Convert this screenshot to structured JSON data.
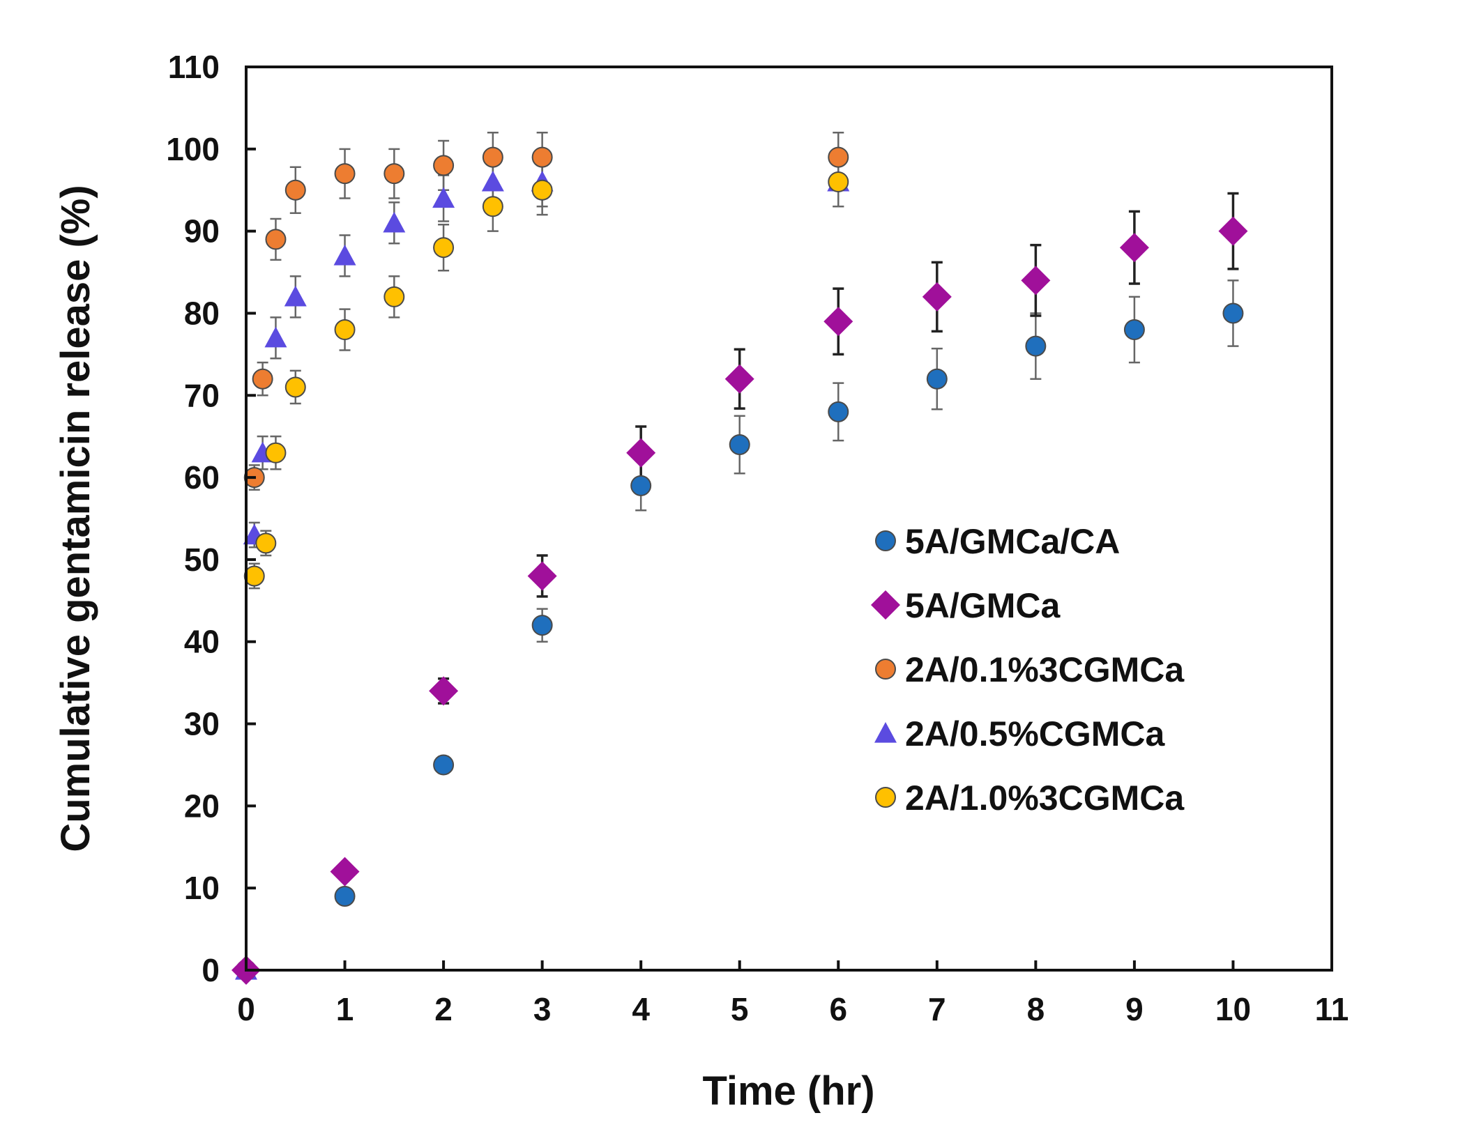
{
  "chart_data": {
    "type": "scatter",
    "title": "",
    "xlabel": "Time (hr)",
    "ylabel": "Cumulative gentamicin release (%)",
    "xlim": [
      0,
      11
    ],
    "ylim": [
      0,
      110
    ],
    "xticks": [
      "0",
      "1",
      "2",
      "3",
      "4",
      "5",
      "6",
      "7",
      "8",
      "9",
      "10",
      "11"
    ],
    "yticks": [
      "0",
      "10",
      "20",
      "30",
      "40",
      "50",
      "60",
      "70",
      "80",
      "90",
      "100",
      "110"
    ],
    "grid": false,
    "legend_position": "center-right",
    "series": [
      {
        "name": "5A/GMCa/CA",
        "marker": "circle",
        "color": "#1f6fbd",
        "x": [
          0,
          1,
          2,
          3,
          4,
          5,
          6,
          7,
          8,
          9,
          10
        ],
        "y": [
          0,
          9,
          25,
          42,
          59,
          64,
          68,
          72,
          76,
          78,
          80
        ],
        "err": [
          0,
          0.5,
          1,
          2,
          3,
          3.5,
          3.5,
          3.7,
          4,
          4,
          4
        ]
      },
      {
        "name": "5A/GMCa",
        "marker": "diamond",
        "color": "#a0109a",
        "x": [
          0,
          1,
          2,
          3,
          4,
          5,
          6,
          7,
          8,
          9,
          10
        ],
        "y": [
          0,
          12,
          34,
          48,
          63,
          72,
          79,
          82,
          84,
          88,
          90
        ],
        "err": [
          0,
          0.5,
          1.5,
          2.5,
          3.2,
          3.6,
          4,
          4.2,
          4.3,
          4.4,
          4.6
        ]
      },
      {
        "name": "2A/0.1%3CGMCa",
        "marker": "circle",
        "color": "#ed7d31",
        "x": [
          0,
          0.083,
          0.167,
          0.3,
          0.5,
          1,
          1.5,
          2,
          2.5,
          3,
          6
        ],
        "y": [
          0,
          60,
          72,
          89,
          95,
          97,
          97,
          98,
          99,
          99,
          99
        ],
        "err": [
          0,
          1.5,
          2,
          2.5,
          2.8,
          3,
          3,
          3,
          3,
          3,
          3
        ]
      },
      {
        "name": "2A/0.5%CGMCa",
        "marker": "triangle",
        "color": "#5b4be0",
        "x": [
          0,
          0.083,
          0.167,
          0.3,
          0.5,
          1,
          1.5,
          2,
          2.5,
          3,
          6
        ],
        "y": [
          0,
          53,
          63,
          77,
          82,
          87,
          91,
          94,
          96,
          96,
          96
        ],
        "err": [
          0,
          1.5,
          2,
          2.5,
          2.5,
          2.5,
          2.5,
          2.8,
          3,
          3,
          3
        ]
      },
      {
        "name": "2A/1.0%3CGMCa",
        "marker": "circle",
        "color": "#ffc000",
        "x": [
          0,
          0.083,
          0.2,
          0.3,
          0.5,
          1,
          1.5,
          2,
          2.5,
          3,
          6
        ],
        "y": [
          0,
          48,
          52,
          63,
          71,
          78,
          82,
          88,
          93,
          95,
          96
        ],
        "err": [
          0,
          1.5,
          1.5,
          2,
          2,
          2.5,
          2.5,
          2.8,
          3,
          3,
          3
        ]
      }
    ]
  }
}
